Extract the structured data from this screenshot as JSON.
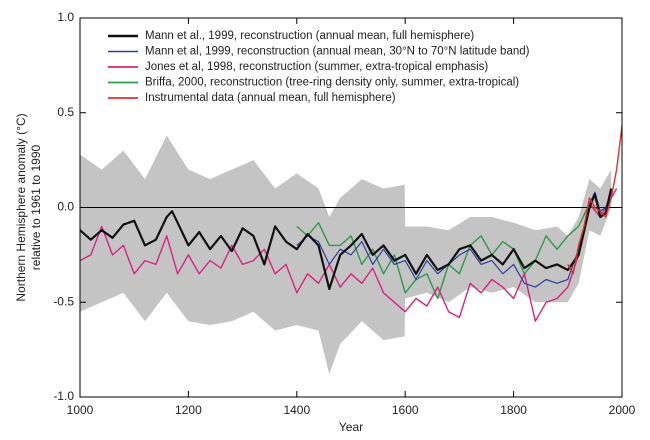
{
  "chart_data": {
    "type": "line",
    "xlabel": "Year",
    "ylabel": [
      "Northern Hemisphere anomaly (°C)",
      "relative to 1961 to 1990"
    ],
    "xlim": [
      1000,
      2000
    ],
    "ylim": [
      -1.0,
      1.0
    ],
    "xticks": [
      1000,
      1200,
      1400,
      1600,
      1800,
      2000
    ],
    "yticks": [
      {
        "value": 1.0,
        "label": "1.0"
      },
      0.5,
      {
        "value": 0.0,
        "label": "0.0"
      },
      -0.5,
      {
        "value": -1.0,
        "label": "-1.0"
      }
    ],
    "hline": 0,
    "legend": "upper-left",
    "band": {
      "color": "#c4c4c4",
      "x": [
        1000,
        1040,
        1080,
        1120,
        1160,
        1200,
        1240,
        1280,
        1320,
        1360,
        1400,
        1440,
        1460,
        1480,
        1520,
        1560,
        1599,
        1600,
        1640,
        1680,
        1720,
        1760,
        1800,
        1840,
        1880,
        1900,
        1920,
        1940,
        1960,
        1980
      ],
      "upper": [
        0.28,
        0.2,
        0.3,
        0.15,
        0.38,
        0.2,
        0.15,
        0.2,
        0.25,
        0.1,
        0.18,
        0.1,
        -0.05,
        0.05,
        0.15,
        0.1,
        0.12,
        -0.1,
        -0.1,
        -0.12,
        -0.05,
        -0.05,
        -0.08,
        -0.12,
        -0.1,
        -0.15,
        -0.05,
        0.15,
        0.1,
        0.2
      ],
      "lower": [
        -0.55,
        -0.5,
        -0.45,
        -0.6,
        -0.45,
        -0.6,
        -0.62,
        -0.6,
        -0.55,
        -0.65,
        -0.62,
        -0.65,
        -0.88,
        -0.72,
        -0.6,
        -0.7,
        -0.68,
        -0.48,
        -0.45,
        -0.5,
        -0.42,
        -0.45,
        -0.42,
        -0.5,
        -0.5,
        -0.5,
        -0.4,
        -0.12,
        -0.15,
        0.0
      ]
    },
    "series": [
      {
        "name": "Mann et al., 1999, reconstruction (annual mean, full hemisphere)",
        "color": "#111111",
        "width": 2.2,
        "x": [
          1000,
          1020,
          1040,
          1060,
          1080,
          1100,
          1120,
          1140,
          1160,
          1170,
          1180,
          1200,
          1220,
          1240,
          1260,
          1280,
          1300,
          1320,
          1340,
          1360,
          1380,
          1400,
          1420,
          1440,
          1460,
          1480,
          1500,
          1520,
          1540,
          1560,
          1580,
          1600,
          1620,
          1640,
          1660,
          1680,
          1700,
          1720,
          1740,
          1760,
          1780,
          1800,
          1820,
          1840,
          1860,
          1880,
          1900,
          1920,
          1940,
          1950,
          1960,
          1970,
          1980
        ],
        "values": [
          -0.12,
          -0.17,
          -0.12,
          -0.16,
          -0.09,
          -0.07,
          -0.2,
          -0.17,
          -0.05,
          -0.02,
          -0.08,
          -0.2,
          -0.13,
          -0.22,
          -0.15,
          -0.23,
          -0.11,
          -0.15,
          -0.3,
          -0.1,
          -0.18,
          -0.22,
          -0.14,
          -0.2,
          -0.43,
          -0.25,
          -0.2,
          -0.14,
          -0.25,
          -0.2,
          -0.28,
          -0.25,
          -0.35,
          -0.25,
          -0.33,
          -0.3,
          -0.22,
          -0.2,
          -0.28,
          -0.25,
          -0.3,
          -0.22,
          -0.32,
          -0.28,
          -0.32,
          -0.3,
          -0.33,
          -0.25,
          0.0,
          0.07,
          -0.05,
          -0.03,
          0.1
        ]
      },
      {
        "name": "Mann et al, 1999, reconstruction (annual mean, 30°N to 70°N latitude band)",
        "color": "#2b3f9e",
        "width": 1.2,
        "x": [
          1400,
          1420,
          1440,
          1460,
          1480,
          1500,
          1520,
          1540,
          1560,
          1580,
          1600,
          1620,
          1640,
          1660,
          1680,
          1700,
          1720,
          1740,
          1760,
          1780,
          1800,
          1820,
          1840,
          1860,
          1880,
          1900,
          1920,
          1940,
          1950,
          1960,
          1970,
          1980
        ],
        "values": [
          -0.2,
          -0.15,
          -0.18,
          -0.3,
          -0.22,
          -0.25,
          -0.18,
          -0.3,
          -0.22,
          -0.3,
          -0.28,
          -0.38,
          -0.28,
          -0.35,
          -0.3,
          -0.25,
          -0.22,
          -0.3,
          -0.28,
          -0.35,
          -0.3,
          -0.4,
          -0.42,
          -0.38,
          -0.4,
          -0.38,
          -0.22,
          0.02,
          0.08,
          -0.02,
          0.0,
          0.08
        ]
      },
      {
        "name": "Jones et al, 1998, reconstruction (summer, extra-tropical emphasis)",
        "color": "#d6257f",
        "width": 1.4,
        "x": [
          1000,
          1020,
          1040,
          1060,
          1080,
          1100,
          1120,
          1140,
          1160,
          1180,
          1200,
          1220,
          1240,
          1260,
          1280,
          1300,
          1320,
          1340,
          1360,
          1380,
          1400,
          1420,
          1440,
          1460,
          1480,
          1500,
          1520,
          1540,
          1560,
          1580,
          1600,
          1620,
          1640,
          1660,
          1680,
          1700,
          1720,
          1740,
          1760,
          1780,
          1800,
          1820,
          1840,
          1860,
          1880,
          1900,
          1920,
          1940,
          1960,
          1980,
          1990
        ],
        "values": [
          -0.28,
          -0.25,
          -0.1,
          -0.25,
          -0.2,
          -0.35,
          -0.28,
          -0.3,
          -0.15,
          -0.35,
          -0.25,
          -0.35,
          -0.28,
          -0.32,
          -0.2,
          -0.3,
          -0.28,
          -0.22,
          -0.35,
          -0.3,
          -0.45,
          -0.35,
          -0.4,
          -0.3,
          -0.42,
          -0.35,
          -0.4,
          -0.32,
          -0.45,
          -0.5,
          -0.55,
          -0.48,
          -0.52,
          -0.42,
          -0.55,
          -0.58,
          -0.4,
          -0.45,
          -0.38,
          -0.42,
          -0.48,
          -0.35,
          -0.6,
          -0.5,
          -0.48,
          -0.42,
          -0.25,
          0.02,
          -0.05,
          0.05,
          0.1
        ]
      },
      {
        "name": "Briffa, 2000, reconstruction (tree-ring density only, summer, extra-tropical)",
        "color": "#2e9a4a",
        "width": 1.4,
        "x": [
          1400,
          1420,
          1440,
          1460,
          1480,
          1500,
          1520,
          1540,
          1560,
          1580,
          1600,
          1620,
          1640,
          1660,
          1680,
          1700,
          1720,
          1740,
          1760,
          1780,
          1800,
          1820,
          1840,
          1860,
          1880,
          1900,
          1920,
          1940,
          1960
        ],
        "values": [
          -0.1,
          -0.15,
          -0.08,
          -0.2,
          -0.2,
          -0.15,
          -0.3,
          -0.22,
          -0.35,
          -0.25,
          -0.45,
          -0.38,
          -0.35,
          -0.48,
          -0.3,
          -0.35,
          -0.2,
          -0.15,
          -0.25,
          -0.18,
          -0.22,
          -0.35,
          -0.28,
          -0.15,
          -0.22,
          -0.15,
          -0.1,
          0.02,
          -0.05
        ]
      },
      {
        "name": "Instrumental data (annual mean, full hemisphere)",
        "color": "#e03030",
        "width": 1.4,
        "x": [
          1900,
          1910,
          1920,
          1930,
          1940,
          1950,
          1960,
          1970,
          1980,
          1990,
          2000
        ],
        "values": [
          -0.3,
          -0.35,
          -0.2,
          -0.1,
          0.05,
          0.0,
          -0.02,
          -0.05,
          0.05,
          0.2,
          0.43
        ]
      }
    ]
  }
}
